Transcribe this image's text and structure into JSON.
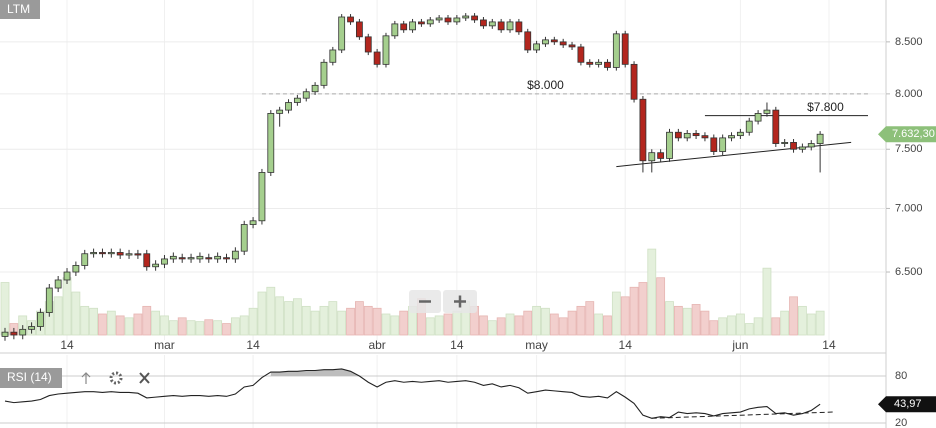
{
  "chart_data": {
    "type": "candlestick",
    "title": "LTM",
    "ylog": true,
    "grid": true,
    "ylim": [
      6040,
      8925
    ],
    "yticks": [
      {
        "value": 6500,
        "label": "6.500"
      },
      {
        "value": 7000,
        "label": "7.000"
      },
      {
        "value": 7500,
        "label": "7.500"
      },
      {
        "value": 8000,
        "label": "8.000"
      },
      {
        "value": 8500,
        "label": "8.500"
      }
    ],
    "up_color": "#a5cf8e",
    "down_color": "#b3261e",
    "volume_up_color": "#e4f0dc",
    "volume_down_color": "#f2cfcd",
    "categories": [
      null,
      null,
      null,
      null,
      null,
      null,
      null,
      "14",
      null,
      null,
      null,
      null,
      null,
      null,
      null,
      null,
      null,
      null,
      "mar",
      null,
      null,
      null,
      null,
      null,
      null,
      null,
      null,
      null,
      "14",
      null,
      null,
      null,
      null,
      null,
      null,
      null,
      null,
      null,
      null,
      null,
      null,
      null,
      "abr",
      null,
      null,
      null,
      null,
      null,
      null,
      null,
      null,
      "14",
      null,
      null,
      null,
      null,
      null,
      null,
      null,
      null,
      "may",
      null,
      null,
      null,
      null,
      null,
      null,
      null,
      null,
      null,
      "14",
      null,
      null,
      null,
      null,
      null,
      null,
      null,
      null,
      null,
      null,
      null,
      null,
      "jun",
      null,
      null,
      null,
      null,
      null,
      null,
      null,
      null,
      null,
      "14"
    ],
    "open": [
      6030,
      6060,
      6040,
      6080,
      6100,
      6200,
      6380,
      6440,
      6500,
      6550,
      6640,
      6650,
      6640,
      6650,
      6630,
      6640,
      6640,
      6540,
      6560,
      6600,
      6610,
      6600,
      6600,
      6610,
      6600,
      6610,
      6600,
      6660,
      6870,
      6900,
      7300,
      7820,
      7850,
      7920,
      7960,
      8020,
      8080,
      8300,
      8420,
      8750,
      8700,
      8550,
      8400,
      8280,
      8560,
      8680,
      8620,
      8700,
      8680,
      8720,
      8740,
      8700,
      8740,
      8760,
      8720,
      8660,
      8700,
      8620,
      8700,
      8600,
      8420,
      8480,
      8520,
      8500,
      8470,
      8450,
      8300,
      8280,
      8300,
      8250,
      8580,
      8280,
      7950,
      7400,
      7470,
      7420,
      7650,
      7600,
      7640,
      7620,
      7600,
      7480,
      7600,
      7620,
      7650,
      7750,
      7820,
      7850,
      7550,
      7560,
      7500,
      7520,
      7550,
      null
    ],
    "high": [
      6090,
      6090,
      6110,
      6130,
      6230,
      6410,
      6470,
      6530,
      6580,
      6670,
      6680,
      6680,
      6680,
      6680,
      6670,
      6670,
      6670,
      6590,
      6630,
      6650,
      6640,
      6640,
      6650,
      6640,
      6650,
      6640,
      6690,
      6900,
      6930,
      7330,
      7850,
      7880,
      7950,
      7990,
      8050,
      8110,
      8330,
      8450,
      8780,
      8780,
      8730,
      8580,
      8430,
      8590,
      8710,
      8710,
      8730,
      8730,
      8750,
      8770,
      8770,
      8770,
      8790,
      8790,
      8750,
      8730,
      8730,
      8730,
      8730,
      8630,
      8510,
      8550,
      8550,
      8530,
      8500,
      8480,
      8330,
      8330,
      8330,
      8610,
      8610,
      8310,
      7980,
      7500,
      7500,
      7680,
      7680,
      7670,
      7670,
      7650,
      7630,
      7630,
      7650,
      7680,
      7780,
      7850,
      7920,
      7880,
      7590,
      7590,
      7550,
      7580,
      7660,
      null
    ],
    "low": [
      6000,
      6010,
      6010,
      6050,
      6070,
      6170,
      6350,
      6410,
      6470,
      6520,
      6610,
      6610,
      6610,
      6600,
      6600,
      6600,
      6510,
      6510,
      6530,
      6570,
      6570,
      6570,
      6570,
      6570,
      6570,
      6570,
      6570,
      6630,
      6840,
      6870,
      7270,
      7700,
      7820,
      7890,
      7930,
      7990,
      8050,
      8270,
      8390,
      8670,
      8520,
      8370,
      8250,
      8250,
      8530,
      8590,
      8590,
      8650,
      8650,
      8690,
      8670,
      8670,
      8710,
      8690,
      8630,
      8630,
      8590,
      8590,
      8570,
      8390,
      8390,
      8450,
      8470,
      8440,
      8420,
      8270,
      8250,
      8250,
      8220,
      8220,
      8250,
      7920,
      7300,
      7300,
      7390,
      7390,
      7570,
      7570,
      7590,
      7570,
      7450,
      7450,
      7570,
      7590,
      7620,
      7720,
      7790,
      7520,
      7520,
      7470,
      7470,
      7490,
      7300,
      null
    ],
    "close": [
      6060,
      6040,
      6080,
      6100,
      6200,
      6380,
      6440,
      6500,
      6550,
      6640,
      6650,
      6640,
      6650,
      6630,
      6640,
      6630,
      6540,
      6560,
      6600,
      6620,
      6600,
      6610,
      6620,
      6600,
      6620,
      6600,
      6660,
      6870,
      6900,
      7300,
      7820,
      7850,
      7920,
      7960,
      8020,
      8080,
      8300,
      8420,
      8750,
      8700,
      8550,
      8400,
      8280,
      8560,
      8680,
      8620,
      8700,
      8680,
      8720,
      8740,
      8700,
      8740,
      8760,
      8720,
      8660,
      8700,
      8620,
      8700,
      8600,
      8420,
      8480,
      8520,
      8500,
      8470,
      8450,
      8300,
      8280,
      8300,
      8250,
      8580,
      8280,
      7950,
      7400,
      7470,
      7420,
      7650,
      7600,
      7640,
      7620,
      7600,
      7480,
      7600,
      7620,
      7650,
      7750,
      7820,
      7850,
      7550,
      7560,
      7500,
      7520,
      7550,
      7632.3,
      null
    ],
    "volume_ylim": [
      0,
      110
    ],
    "volume": [
      55,
      12,
      20,
      15,
      25,
      35,
      40,
      60,
      45,
      30,
      28,
      22,
      25,
      20,
      18,
      22,
      30,
      25,
      20,
      15,
      18,
      15,
      14,
      16,
      15,
      12,
      18,
      20,
      28,
      45,
      50,
      40,
      35,
      38,
      30,
      25,
      30,
      35,
      25,
      28,
      35,
      30,
      28,
      22,
      20,
      25,
      30,
      38,
      18,
      20,
      22,
      25,
      35,
      30,
      20,
      15,
      18,
      22,
      20,
      25,
      30,
      28,
      22,
      18,
      25,
      30,
      35,
      22,
      20,
      45,
      40,
      50,
      55,
      90,
      60,
      35,
      30,
      28,
      32,
      25,
      15,
      18,
      20,
      22,
      12,
      18,
      70,
      18,
      25,
      40,
      30,
      22,
      25,
      null
    ],
    "annotations": [
      {
        "text": "$8.000",
        "value": 8000
      },
      {
        "text": "$7.800",
        "value": 7800
      }
    ],
    "support_line": [
      7350,
      7560
    ],
    "last_price": {
      "value": 7632.3,
      "label": "7.632,30"
    },
    "rsi": {
      "name": "RSI (14)",
      "color": "#222222",
      "ylim": [
        13.6,
        106.8
      ],
      "yticks": [
        20,
        80
      ],
      "values": [
        48,
        46,
        47,
        48,
        50,
        55,
        57,
        58,
        59,
        60,
        60,
        59,
        60,
        59,
        59,
        58,
        52,
        53,
        54,
        55,
        54,
        55,
        55,
        54,
        55,
        54,
        57,
        66,
        68,
        78,
        85,
        85,
        86,
        86,
        87,
        87,
        88,
        88,
        89,
        86,
        80,
        72,
        66,
        72,
        74,
        72,
        73,
        72,
        73,
        74,
        72,
        73,
        74,
        72,
        68,
        70,
        66,
        68,
        65,
        58,
        60,
        62,
        61,
        60,
        59,
        54,
        53,
        54,
        52,
        60,
        53,
        45,
        30,
        26,
        28,
        27,
        34,
        32,
        33,
        32,
        29,
        32,
        33,
        34,
        38,
        40,
        41,
        32,
        33,
        30,
        32,
        36,
        43.97,
        null
      ],
      "trendline": [
        26,
        34
      ],
      "last": {
        "value": 43.97,
        "label": "43,97"
      }
    }
  }
}
